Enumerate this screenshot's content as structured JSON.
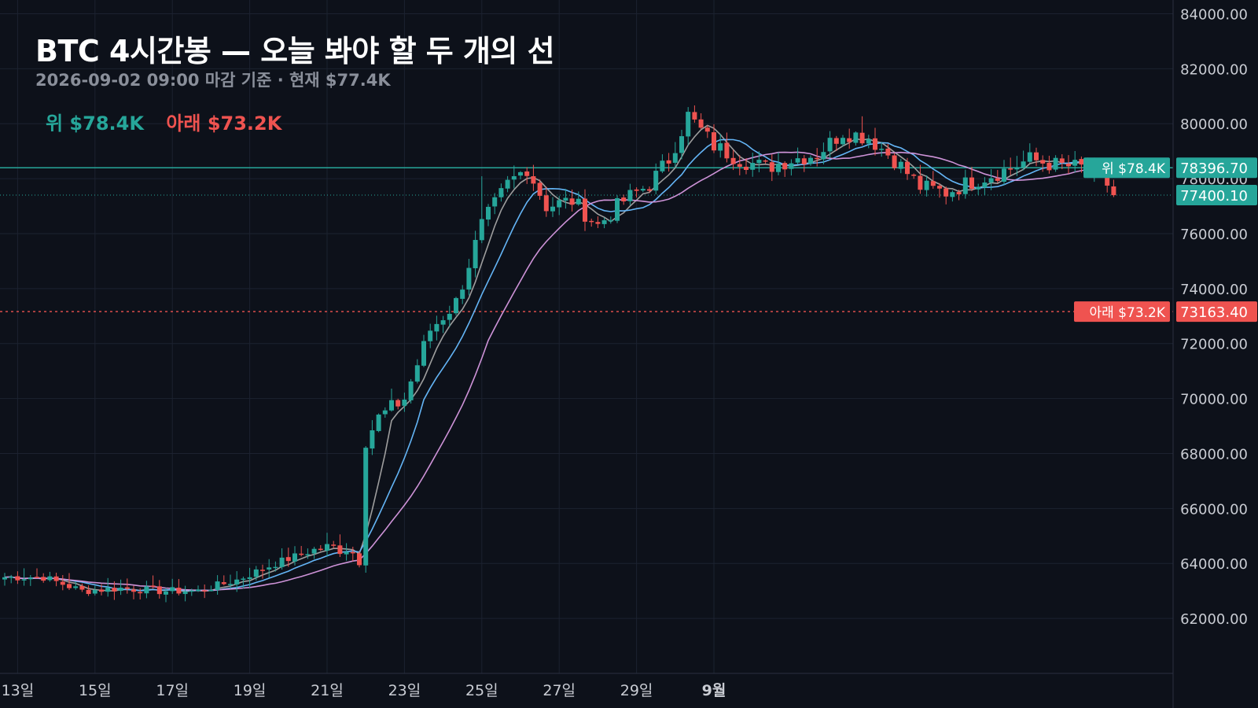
{
  "header": {
    "title": "BTC 4시간봉 — 오늘 봐야 할 두 개의 선",
    "subtitle": "2026-09-02 09:00 마감 기준 · 현재 $77.4K",
    "legend_upper": "위 $78.4K",
    "legend_lower": "아래 $73.2K"
  },
  "colors": {
    "background": "#0d111a",
    "grid": "#1c2230",
    "up": "#26a69a",
    "down": "#ef5350",
    "ma_fast": "#9e9e9e",
    "ma_mid": "#64b5f6",
    "ma_slow": "#ce93d8"
  },
  "chart_data": {
    "type": "candlestick",
    "title": "BTC 4시간봉 — 오늘 봐야 할 두 개의 선",
    "y_axis_ticks": [
      62000,
      64000,
      66000,
      68000,
      70000,
      72000,
      74000,
      76000,
      78000,
      80000,
      82000,
      84000
    ],
    "y_tick_labels": [
      "62000.00",
      "64000.00",
      "66000.00",
      "68000.00",
      "70000.00",
      "72000.00",
      "74000.00",
      "76000.00",
      "78000.00",
      "80000.00",
      "82000.00",
      "84000.00"
    ],
    "ylim": [
      60000,
      84500
    ],
    "x_axis_ticks": [
      "13일",
      "15일",
      "17일",
      "19일",
      "21일",
      "23일",
      "25일",
      "27일",
      "29일",
      "9월"
    ],
    "levels": [
      {
        "label": "위 $78.4K",
        "value": 78396.7,
        "value_label": "78396.70",
        "color": "#26a69a",
        "style": "solid"
      },
      {
        "label": "아래 $73.2K",
        "value": 73163.4,
        "value_label": "73163.40",
        "color": "#ef5350",
        "style": "dotted"
      }
    ],
    "current_price": {
      "value": 77400.1,
      "value_label": "77400.10",
      "color": "#26a69a"
    },
    "anchors": [
      [
        0,
        63500
      ],
      [
        6,
        63500
      ],
      [
        12,
        63000
      ],
      [
        18,
        63100
      ],
      [
        24,
        63000
      ],
      [
        30,
        63000
      ],
      [
        36,
        63400
      ],
      [
        42,
        64000
      ],
      [
        48,
        64500
      ],
      [
        53,
        64600
      ],
      [
        55,
        64200
      ],
      [
        56,
        68500
      ],
      [
        58,
        69300
      ],
      [
        62,
        70000
      ],
      [
        66,
        72500
      ],
      [
        70,
        73500
      ],
      [
        74,
        76300
      ],
      [
        78,
        77800
      ],
      [
        81,
        78400
      ],
      [
        84,
        77000
      ],
      [
        88,
        77200
      ],
      [
        92,
        76300
      ],
      [
        96,
        77200
      ],
      [
        100,
        77800
      ],
      [
        103,
        78700
      ],
      [
        106,
        80300
      ],
      [
        110,
        79200
      ],
      [
        114,
        78700
      ],
      [
        118,
        78400
      ],
      [
        122,
        78700
      ],
      [
        126,
        78900
      ],
      [
        130,
        79700
      ],
      [
        134,
        79500
      ],
      [
        138,
        78700
      ],
      [
        142,
        77700
      ],
      [
        146,
        77500
      ],
      [
        150,
        77900
      ],
      [
        155,
        78300
      ],
      [
        159,
        78700
      ],
      [
        163,
        78500
      ],
      [
        167,
        78400
      ],
      [
        170,
        78200
      ],
      [
        172,
        77400
      ]
    ],
    "moving_averages": [
      {
        "period": 5,
        "color": "#9e9e9e"
      },
      {
        "period": 10,
        "color": "#64b5f6"
      },
      {
        "period": 20,
        "color": "#ce93d8"
      }
    ]
  }
}
